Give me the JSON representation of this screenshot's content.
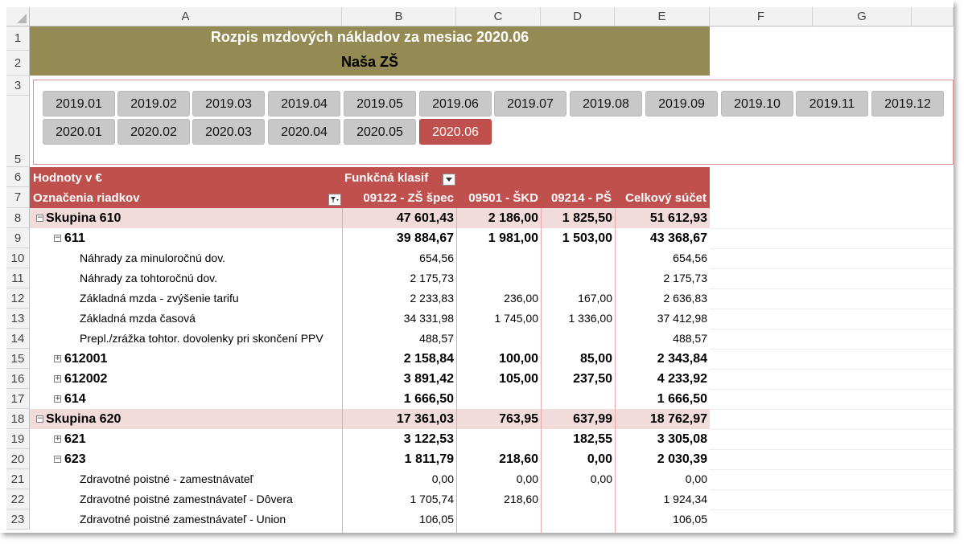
{
  "columns": [
    "A",
    "B",
    "C",
    "D",
    "E",
    "F",
    "G"
  ],
  "rows": [
    "1",
    "2",
    "3",
    "5",
    "6",
    "7",
    "8",
    "9",
    "10",
    "11",
    "12",
    "13",
    "14",
    "15",
    "16",
    "17",
    "18",
    "19",
    "20",
    "21",
    "22",
    "23"
  ],
  "title": {
    "line1": "Rozpis mzdových nákladov za mesiac 2020.06",
    "line2": "Naša ZŠ"
  },
  "slicer": {
    "items": [
      "2019.01",
      "2019.02",
      "2019.03",
      "2019.04",
      "2019.05",
      "2019.06",
      "2019.07",
      "2019.08",
      "2019.09",
      "2019.10",
      "2019.11",
      "2019.12",
      "2020.01",
      "2020.02",
      "2020.03",
      "2020.04",
      "2020.05",
      "2020.06"
    ],
    "selected": "2020.06"
  },
  "pivot": {
    "values_label": "Hodnoty v €",
    "column_field_label": "Funkčná klasif",
    "row_labels_header": "Označenia riadkov",
    "col_headers": [
      "09122 - ZŠ špec",
      "09501 - ŠKD",
      "09214 - PŠ",
      "Celkový súčet"
    ],
    "rows": [
      {
        "label": "Skupina 610",
        "v": [
          "47 601,43",
          "2 186,00",
          "1 825,50",
          "51 612,93"
        ]
      },
      {
        "label": "611",
        "v": [
          "39 884,67",
          "1 981,00",
          "1 503,00",
          "43 368,67"
        ]
      },
      {
        "label": "Náhrady za minuloročnú dov.",
        "v": [
          "654,56",
          "",
          "",
          "654,56"
        ]
      },
      {
        "label": "Náhrady za tohtoročnú dov.",
        "v": [
          "2 175,73",
          "",
          "",
          "2 175,73"
        ]
      },
      {
        "label": "Základná mzda - zvýšenie tarifu",
        "v": [
          "2 233,83",
          "236,00",
          "167,00",
          "2 636,83"
        ]
      },
      {
        "label": "Základná mzda časová",
        "v": [
          "34 331,98",
          "1 745,00",
          "1 336,00",
          "37 412,98"
        ]
      },
      {
        "label": "Prepl./zrážka tohtor. dovolenky pri skončení PPV",
        "v": [
          "488,57",
          "",
          "",
          "488,57"
        ]
      },
      {
        "label": "612001",
        "v": [
          "2 158,84",
          "100,00",
          "85,00",
          "2 343,84"
        ]
      },
      {
        "label": "612002",
        "v": [
          "3 891,42",
          "105,00",
          "237,50",
          "4 233,92"
        ]
      },
      {
        "label": "614",
        "v": [
          "1 666,50",
          "",
          "",
          "1 666,50"
        ]
      },
      {
        "label": "Skupina 620",
        "v": [
          "17 361,03",
          "763,95",
          "637,99",
          "18 762,97"
        ]
      },
      {
        "label": "621",
        "v": [
          "3 122,53",
          "",
          "182,55",
          "3 305,08"
        ]
      },
      {
        "label": "623",
        "v": [
          "1 811,79",
          "218,60",
          "0,00",
          "2 030,39"
        ]
      },
      {
        "label": "Zdravotné poistné - zamestnávateľ",
        "v": [
          "0,00",
          "0,00",
          "0,00",
          "0,00"
        ]
      },
      {
        "label": "Zdravotné poistné zamestnávateľ - Dôvera",
        "v": [
          "1 705,74",
          "218,60",
          "",
          "1 924,34"
        ]
      },
      {
        "label": "Zdravotné poistné zamestnávateľ - Union",
        "v": [
          "106,05",
          "",
          "",
          "106,05"
        ]
      }
    ]
  },
  "colors": {
    "title_fill": "#948a54",
    "pivot_header": "#c0504d",
    "group_band": "#f2dcdb",
    "slicer_selected": "#c0504d",
    "slicer_item": "#c8c8c8"
  }
}
